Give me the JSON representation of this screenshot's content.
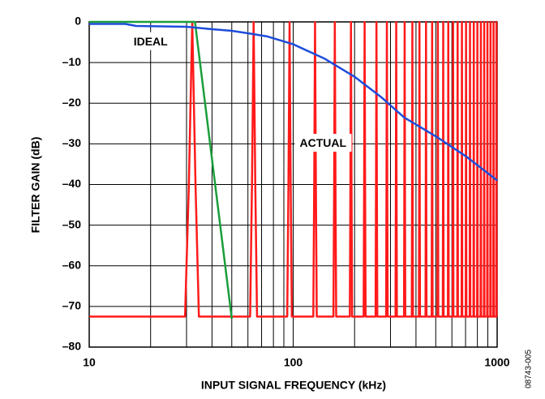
{
  "chart_data": {
    "type": "line",
    "x_label": "INPUT SIGNAL FREQUENCY (kHz)",
    "y_label": "FILTER GAIN (dB)",
    "side_label": "08743-005",
    "xscale": "log",
    "xlim": [
      10,
      1000
    ],
    "ylim": [
      -80,
      0
    ],
    "xticks": [
      10,
      100,
      1000
    ],
    "x_grid_lines": [
      20,
      30,
      40,
      50,
      60,
      70,
      80,
      90,
      200,
      300,
      400,
      500,
      600,
      700,
      800,
      900
    ],
    "yticks": [
      {
        "value": -80,
        "label": "–80"
      },
      {
        "value": -70,
        "label": "–70"
      },
      {
        "value": -60,
        "label": "–60"
      },
      {
        "value": -50,
        "label": "–50"
      },
      {
        "value": -40,
        "label": "–40"
      },
      {
        "value": -30,
        "label": "–30"
      },
      {
        "value": -20,
        "label": "–20"
      },
      {
        "value": -10,
        "label": "–10"
      },
      0
    ],
    "grid": true,
    "series": [
      {
        "color": "#ff1a1a",
        "x": [
          10,
          29.5,
          30.8,
          32,
          33.2,
          34.5,
          61.5,
          62.8,
          64,
          65.2,
          66.5,
          93.5,
          94.8,
          96,
          97.2,
          98.5,
          125.5,
          126.8,
          128,
          129.2,
          130.5,
          157.5,
          158.8,
          160,
          161.2,
          162.5,
          189.5,
          190.8,
          192,
          193.2,
          194.5,
          221.5,
          222.8,
          224,
          225.2,
          226.5,
          253.5,
          254.8,
          256,
          257.2,
          258.5,
          285.5,
          286.8,
          288,
          289.2,
          290.5,
          317.5,
          318.8,
          320,
          321.2,
          322.5,
          349.5,
          350.8,
          352,
          353.2,
          354.5,
          381.5,
          382.8,
          384,
          385.2,
          386.5,
          413.5,
          414.8,
          416,
          417.2,
          418.5,
          445.5,
          446.8,
          448,
          449.2,
          450.5,
          477.5,
          478.8,
          480,
          481.2,
          482.5,
          509.5,
          510.8,
          512,
          513.2,
          514.5,
          541.5,
          542.8,
          544,
          545.2,
          546.5,
          573.5,
          574.8,
          576,
          577.2,
          578.5,
          605.5,
          606.8,
          608,
          609.2,
          610.5,
          637.5,
          638.8,
          640,
          641.2,
          642.5,
          669.5,
          670.8,
          672,
          673.2,
          674.5,
          701.5,
          702.8,
          704,
          705.2,
          706.5,
          733.5,
          734.8,
          736,
          737.2,
          738.5,
          765.5,
          766.8,
          768,
          769.2,
          770.5,
          797.5,
          798.8,
          800,
          801.2,
          802.5,
          829.5,
          830.8,
          832,
          833.2,
          834.5,
          861.5,
          862.8,
          864,
          865.2,
          866.5,
          893.5,
          894.8,
          896,
          897.2,
          898.5,
          925.5,
          926.8,
          928,
          929.2,
          930.5,
          957.5,
          958.8,
          960,
          961.2,
          962.5,
          989.5,
          990.8,
          992,
          993.2,
          994.5,
          1000
        ],
        "values": [
          -72.5,
          -72.5,
          -40,
          0,
          -40,
          -72.5,
          -72.5,
          -40,
          0,
          -40,
          -72.5,
          -72.5,
          -40,
          0,
          -40,
          -72.5,
          -72.5,
          -40,
          0,
          -40,
          -72.5,
          -72.5,
          -40,
          0,
          -40,
          -72.5,
          -72.5,
          -40,
          0,
          -40,
          -72.5,
          -72.5,
          -40,
          0,
          -40,
          -72.5,
          -72.5,
          -40,
          0,
          -40,
          -72.5,
          -72.5,
          -40,
          0,
          -40,
          -72.5,
          -72.5,
          -40,
          0,
          -40,
          -72.5,
          -72.5,
          -40,
          0,
          -40,
          -72.5,
          -72.5,
          -40,
          0,
          -40,
          -72.5,
          -72.5,
          -40,
          0,
          -40,
          -72.5,
          -72.5,
          -40,
          0,
          -40,
          -72.5,
          -72.5,
          -40,
          0,
          -40,
          -72.5,
          -72.5,
          -40,
          0,
          -40,
          -72.5,
          -72.5,
          -40,
          0,
          -40,
          -72.5,
          -72.5,
          -40,
          0,
          -40,
          -72.5,
          -72.5,
          -40,
          0,
          -40,
          -72.5,
          -72.5,
          -40,
          0,
          -40,
          -72.5,
          -72.5,
          -40,
          0,
          -40,
          -72.5,
          -72.5,
          -40,
          0,
          -40,
          -72.5,
          -72.5,
          -40,
          0,
          -40,
          -72.5,
          -72.5,
          -40,
          0,
          -40,
          -72.5,
          -72.5,
          -40,
          0,
          -40,
          -72.5,
          -72.5,
          -40,
          0,
          -40,
          -72.5,
          -72.5,
          -40,
          0,
          -40,
          -72.5,
          -72.5,
          -40,
          0,
          -40,
          -72.5,
          -72.5,
          -40,
          0,
          -40,
          -72.5,
          -72.5,
          -40,
          0,
          -40,
          -72.5,
          -72.5,
          -40,
          0,
          -40,
          -72.5,
          -72.5
        ]
      },
      {
        "color": "#1a9e3a",
        "x": [
          10,
          33,
          50
        ],
        "values": [
          0,
          0,
          -73
        ]
      },
      {
        "color": "#1e4ddb",
        "x": [
          10,
          15,
          17,
          30,
          40,
          50,
          60,
          75,
          100,
          142,
          200,
          270,
          350,
          513,
          700,
          1000
        ],
        "values": [
          -0.5,
          -0.5,
          -1,
          -1.2,
          -1.8,
          -2.2,
          -2.8,
          -3.6,
          -5.5,
          -9,
          -13.5,
          -18.5,
          -23.5,
          -28.5,
          -33,
          -39
        ]
      }
    ],
    "annotations": [
      {
        "text": "IDEAL",
        "x": 20,
        "y": -5
      },
      {
        "text": "ACTUAL",
        "x": 140,
        "y": -30
      }
    ]
  }
}
